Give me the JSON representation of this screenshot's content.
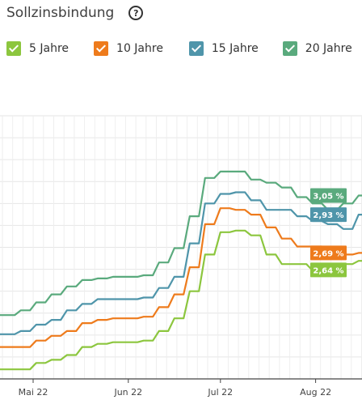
{
  "header": {
    "title": "Sollzinsbindung",
    "help_icon": "help-circle-icon",
    "help_glyph": "?"
  },
  "legend": {
    "items": [
      {
        "label": "5 Jahre",
        "color": "#8cc63e",
        "checked": true,
        "icon": "check-icon"
      },
      {
        "label": "10 Jahre",
        "color": "#ee7b1c",
        "checked": true,
        "icon": "check-icon"
      },
      {
        "label": "15 Jahre",
        "color": "#4f95aa",
        "checked": true,
        "icon": "check-icon"
      },
      {
        "label": "20 Jahre",
        "color": "#5aaa7d",
        "checked": true,
        "icon": "check-icon"
      }
    ]
  },
  "chart_data": {
    "type": "line",
    "title": "",
    "xlabel": "",
    "ylabel": "",
    "x_ticks": [
      "Mai 22",
      "Jun 22",
      "Jul 22",
      "Aug 22"
    ],
    "ylim": [
      1.9,
      3.55
    ],
    "grid": true,
    "legend_position": "top",
    "x": [
      "2022-04-22",
      "2022-04-27",
      "2022-05-02",
      "2022-05-07",
      "2022-05-12",
      "2022-05-17",
      "2022-05-22",
      "2022-05-27",
      "2022-06-01",
      "2022-06-06",
      "2022-06-11",
      "2022-06-16",
      "2022-06-21",
      "2022-06-26",
      "2022-07-01",
      "2022-07-06",
      "2022-07-11",
      "2022-07-16",
      "2022-07-21",
      "2022-07-26",
      "2022-07-31",
      "2022-08-05",
      "2022-08-10",
      "2022-08-15"
    ],
    "series": [
      {
        "name": "5 Jahre",
        "color": "#8cc63e",
        "last_value_label": "2,64 %",
        "values": [
          1.96,
          1.96,
          2.0,
          2.02,
          2.05,
          2.1,
          2.12,
          2.13,
          2.13,
          2.14,
          2.2,
          2.28,
          2.45,
          2.68,
          2.82,
          2.83,
          2.8,
          2.68,
          2.62,
          2.62,
          2.58,
          2.58,
          2.62,
          2.64
        ]
      },
      {
        "name": "10 Jahre",
        "color": "#ee7b1c",
        "last_value_label": "2,69 %",
        "values": [
          2.1,
          2.1,
          2.14,
          2.17,
          2.2,
          2.25,
          2.27,
          2.28,
          2.28,
          2.29,
          2.35,
          2.43,
          2.6,
          2.87,
          2.97,
          2.96,
          2.93,
          2.85,
          2.78,
          2.73,
          2.73,
          2.68,
          2.68,
          2.69
        ]
      },
      {
        "name": "15 Jahre",
        "color": "#4f95aa",
        "last_value_label": "2,93 %",
        "values": [
          2.18,
          2.2,
          2.24,
          2.27,
          2.33,
          2.37,
          2.4,
          2.4,
          2.4,
          2.41,
          2.47,
          2.54,
          2.75,
          3.0,
          3.06,
          3.07,
          3.02,
          2.96,
          2.96,
          2.92,
          2.89,
          2.87,
          2.84,
          2.93
        ]
      },
      {
        "name": "20 Jahre",
        "color": "#5aaa7d",
        "last_value_label": "3,05 %",
        "values": [
          2.3,
          2.33,
          2.38,
          2.43,
          2.48,
          2.52,
          2.53,
          2.54,
          2.54,
          2.55,
          2.63,
          2.72,
          2.92,
          3.16,
          3.2,
          3.2,
          3.15,
          3.13,
          3.1,
          3.04,
          3.0,
          2.96,
          3.0,
          3.05
        ]
      }
    ]
  }
}
